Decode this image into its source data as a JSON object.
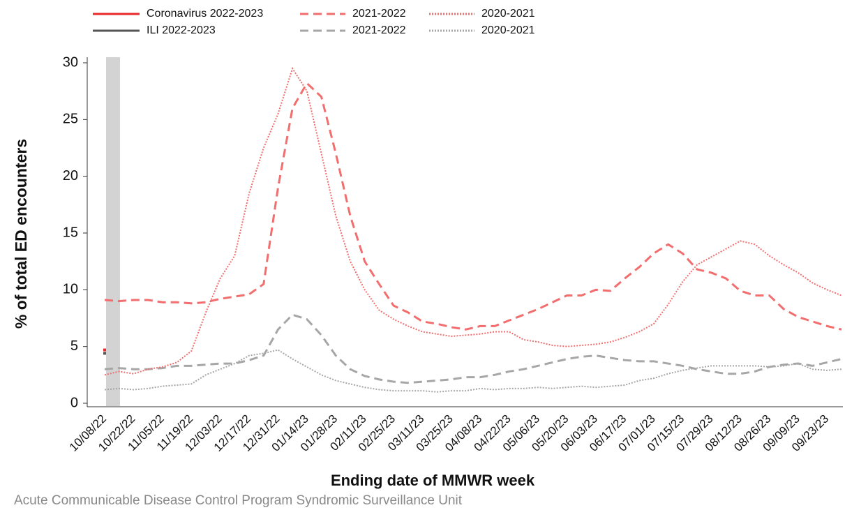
{
  "chart_data": {
    "type": "line",
    "y_label": "% of total ED encounters",
    "x_label": "Ending date of MMWR week",
    "source": "Acute Communicable Disease Control Program Syndromic Surveillance Unit",
    "categories": [
      "10/08/22",
      null,
      "10/22/22",
      null,
      "11/05/22",
      null,
      "11/19/22",
      null,
      "12/03/22",
      null,
      "12/17/22",
      null,
      "12/31/22",
      null,
      "01/14/23",
      null,
      "01/28/23",
      null,
      "02/11/23",
      null,
      "02/25/23",
      null,
      "03/11/23",
      null,
      "03/25/23",
      null,
      "04/08/23",
      null,
      "04/22/23",
      null,
      "05/06/23",
      null,
      "05/20/23",
      null,
      "06/03/23",
      null,
      "06/17/23",
      null,
      "07/01/23",
      null,
      "07/15/23",
      null,
      "07/29/23",
      null,
      "08/12/23",
      null,
      "08/26/23",
      null,
      "09/09/23",
      null,
      "09/23/23",
      null
    ],
    "ylim": [
      0,
      30
    ],
    "yticks": [
      0,
      5,
      10,
      15,
      20,
      25,
      30
    ],
    "series": [
      {
        "name": "Coronavirus 2022-2023",
        "color": "#e8282b",
        "style": "solid",
        "values": [
          4.7,
          null,
          null,
          null,
          null,
          null,
          null,
          null,
          null,
          null,
          null,
          null,
          null,
          null,
          null,
          null,
          null,
          null,
          null,
          null,
          null,
          null,
          null,
          null,
          null,
          null,
          null,
          null,
          null,
          null,
          null,
          null,
          null,
          null,
          null,
          null,
          null,
          null,
          null,
          null,
          null,
          null,
          null,
          null,
          null,
          null,
          null,
          null,
          null,
          null,
          null,
          null
        ]
      },
      {
        "name": "ILI 2022-2023",
        "color": "#555555",
        "style": "solid",
        "values": [
          4.4,
          null,
          null,
          null,
          null,
          null,
          null,
          null,
          null,
          null,
          null,
          null,
          null,
          null,
          null,
          null,
          null,
          null,
          null,
          null,
          null,
          null,
          null,
          null,
          null,
          null,
          null,
          null,
          null,
          null,
          null,
          null,
          null,
          null,
          null,
          null,
          null,
          null,
          null,
          null,
          null,
          null,
          null,
          null,
          null,
          null,
          null,
          null,
          null,
          null,
          null,
          null
        ]
      },
      {
        "name": "2021-2022",
        "color": "#f26d6d",
        "style": "dashed",
        "values": [
          9.1,
          9.0,
          9.1,
          9.1,
          8.9,
          8.9,
          8.8,
          8.9,
          9.2,
          9.4,
          9.6,
          10.5,
          19,
          26,
          28.2,
          27,
          22,
          16.5,
          12.5,
          10.5,
          8.6,
          8.0,
          7.2,
          7.0,
          6.7,
          6.5,
          6.8,
          6.8,
          7.3,
          7.8,
          8.3,
          8.9,
          9.5,
          9.5,
          10.0,
          9.9,
          11.0,
          12.0,
          13.2,
          14.0,
          13.2,
          11.8,
          11.5,
          11.0,
          9.9,
          9.5,
          9.5,
          8.3,
          7.6,
          7.2,
          6.8,
          6.5
        ]
      },
      {
        "name": "2021-2022",
        "color": "#a6a6a6",
        "style": "dashed",
        "values": [
          3.0,
          3.1,
          3.0,
          3.0,
          3.1,
          3.3,
          3.3,
          3.4,
          3.5,
          3.5,
          3.8,
          4.2,
          6.5,
          7.8,
          7.4,
          6.0,
          4.2,
          3.0,
          2.4,
          2.1,
          1.9,
          1.8,
          1.9,
          2.0,
          2.1,
          2.3,
          2.3,
          2.5,
          2.8,
          3.0,
          3.3,
          3.6,
          3.9,
          4.1,
          4.2,
          4.0,
          3.8,
          3.7,
          3.7,
          3.5,
          3.3,
          3.0,
          2.8,
          2.6,
          2.6,
          2.8,
          3.2,
          3.4,
          3.5,
          3.3,
          3.6,
          3.9
        ]
      },
      {
        "name": "2020-2021",
        "color": "#f26d6d",
        "style": "dotted",
        "values": [
          2.5,
          2.8,
          2.6,
          3.0,
          3.2,
          3.6,
          4.6,
          8.0,
          11.0,
          13.0,
          18.5,
          22.5,
          25.5,
          29.5,
          27.5,
          22,
          16.5,
          12.5,
          10,
          8.2,
          7.4,
          6.8,
          6.3,
          6.1,
          5.9,
          6.0,
          6.1,
          6.3,
          6.3,
          5.6,
          5.4,
          5.1,
          5.0,
          5.1,
          5.2,
          5.4,
          5.8,
          6.3,
          7.0,
          8.7,
          10.7,
          12.2,
          12.9,
          13.6,
          14.3,
          14.0,
          13.0,
          12.2,
          11.5,
          10.6,
          10.0,
          9.5
        ]
      },
      {
        "name": "2020-2021",
        "color": "#a6a6a6",
        "style": "dotted",
        "values": [
          1.2,
          1.3,
          1.2,
          1.3,
          1.5,
          1.6,
          1.7,
          2.5,
          3.0,
          3.5,
          4.2,
          4.4,
          4.7,
          3.9,
          3.2,
          2.5,
          2.0,
          1.7,
          1.4,
          1.2,
          1.1,
          1.1,
          1.1,
          1.0,
          1.1,
          1.1,
          1.3,
          1.2,
          1.3,
          1.3,
          1.4,
          1.3,
          1.4,
          1.5,
          1.4,
          1.5,
          1.6,
          2.0,
          2.2,
          2.6,
          2.9,
          3.1,
          3.3,
          3.3,
          3.3,
          3.3,
          3.2,
          3.3,
          3.5,
          3.0,
          2.9,
          3.0
        ]
      }
    ]
  }
}
